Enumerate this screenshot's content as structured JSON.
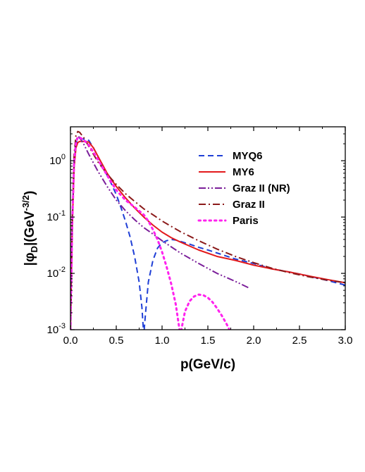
{
  "chart_data": {
    "type": "line",
    "xlabel": "p(GeV/c)",
    "ylabel": {
      "prefix": "|φ",
      "subscript": "D",
      "mid": "|(GeV",
      "superscript": "-3/2",
      "suffix": ")"
    },
    "xlim": [
      0,
      3.0
    ],
    "ylim": [
      0.001,
      4.0
    ],
    "yscale": "log",
    "grid": false,
    "legend_position": "top-right",
    "x_ticks": [
      {
        "value": 0.0,
        "label": "0.0"
      },
      {
        "value": 0.5,
        "label": "0.5"
      },
      {
        "value": 1.0,
        "label": "1.0"
      },
      {
        "value": 1.5,
        "label": "1.5"
      },
      {
        "value": 2.0,
        "label": "2.0"
      },
      {
        "value": 2.5,
        "label": "2.5"
      },
      {
        "value": 3.0,
        "label": "3.0"
      }
    ],
    "y_ticks": [
      {
        "value": 0.001,
        "base": "10",
        "exp": "-3"
      },
      {
        "value": 0.01,
        "base": "10",
        "exp": "-2"
      },
      {
        "value": 0.1,
        "base": "10",
        "exp": "-1"
      },
      {
        "value": 1,
        "base": "10",
        "exp": "0"
      }
    ],
    "series": [
      {
        "name": "MYQ6",
        "color": "#1f3fd6",
        "style": "dash",
        "x": [
          0.0,
          0.02,
          0.04,
          0.06,
          0.08,
          0.1,
          0.15,
          0.2,
          0.25,
          0.3,
          0.35,
          0.4,
          0.45,
          0.5,
          0.55,
          0.6,
          0.65,
          0.7,
          0.75,
          0.78,
          0.8,
          0.82,
          0.85,
          0.9,
          0.95,
          1.0,
          1.05,
          1.1,
          1.15,
          1.2,
          1.3,
          1.4,
          1.5,
          1.6,
          1.8,
          2.0,
          2.2,
          2.4,
          2.6,
          2.8,
          3.0
        ],
        "y": [
          0.001,
          0.08,
          0.9,
          2.0,
          2.4,
          2.5,
          2.4,
          2.3,
          1.7,
          1.2,
          0.8,
          0.55,
          0.38,
          0.25,
          0.15,
          0.085,
          0.045,
          0.02,
          0.007,
          0.0025,
          0.0008,
          0.002,
          0.007,
          0.017,
          0.028,
          0.035,
          0.038,
          0.04,
          0.039,
          0.037,
          0.033,
          0.029,
          0.026,
          0.023,
          0.018,
          0.015,
          0.012,
          0.0105,
          0.009,
          0.0075,
          0.0062
        ]
      },
      {
        "name": "MY6",
        "color": "#e31a1c",
        "style": "solid",
        "x": [
          0.0,
          0.02,
          0.04,
          0.06,
          0.08,
          0.1,
          0.15,
          0.2,
          0.25,
          0.3,
          0.35,
          0.4,
          0.5,
          0.6,
          0.7,
          0.8,
          0.9,
          1.0,
          1.1,
          1.2,
          1.4,
          1.6,
          1.8,
          2.0,
          2.2,
          2.4,
          2.6,
          2.8,
          3.0
        ],
        "y": [
          0.001,
          0.07,
          0.75,
          1.7,
          2.1,
          2.2,
          2.2,
          2.15,
          1.7,
          1.2,
          0.85,
          0.6,
          0.35,
          0.22,
          0.145,
          0.1,
          0.072,
          0.054,
          0.043,
          0.036,
          0.026,
          0.02,
          0.017,
          0.014,
          0.012,
          0.0105,
          0.009,
          0.0078,
          0.0068
        ]
      },
      {
        "name": "Graz II (NR)",
        "color": "#7b1f9a",
        "style": "dashdotdot",
        "x": [
          0.0,
          0.02,
          0.04,
          0.06,
          0.08,
          0.1,
          0.15,
          0.2,
          0.3,
          0.4,
          0.5,
          0.6,
          0.7,
          0.8,
          0.9,
          1.0,
          1.2,
          1.4,
          1.6,
          1.8,
          1.95
        ],
        "y": [
          0.001,
          0.09,
          1.1,
          2.3,
          2.7,
          2.6,
          1.9,
          1.3,
          0.65,
          0.35,
          0.2,
          0.13,
          0.09,
          0.065,
          0.05,
          0.038,
          0.023,
          0.015,
          0.01,
          0.0072,
          0.0055
        ]
      },
      {
        "name": "Graz II",
        "color": "#8b1a1a",
        "style": "dashdot",
        "x": [
          0.0,
          0.02,
          0.04,
          0.06,
          0.08,
          0.1,
          0.15,
          0.2,
          0.3,
          0.4,
          0.5,
          0.6,
          0.7,
          0.8,
          0.9,
          1.0,
          1.2,
          1.4,
          1.6,
          1.8,
          2.0,
          2.2,
          2.4,
          2.6,
          2.8,
          3.0
        ],
        "y": [
          0.001,
          0.1,
          1.3,
          2.8,
          3.3,
          3.2,
          2.5,
          1.8,
          0.95,
          0.58,
          0.38,
          0.26,
          0.19,
          0.14,
          0.11,
          0.085,
          0.055,
          0.038,
          0.027,
          0.02,
          0.0155,
          0.0123,
          0.0102,
          0.0087,
          0.0076,
          0.0068
        ]
      },
      {
        "name": "Paris",
        "color": "#ff22ee",
        "style": "dot",
        "x": [
          0.0,
          0.02,
          0.04,
          0.06,
          0.08,
          0.1,
          0.15,
          0.2,
          0.3,
          0.4,
          0.5,
          0.6,
          0.7,
          0.8,
          0.85,
          0.9,
          0.95,
          1.0,
          1.05,
          1.1,
          1.15,
          1.18,
          1.2,
          1.22,
          1.25,
          1.3,
          1.35,
          1.4,
          1.45,
          1.5,
          1.55,
          1.6,
          1.65,
          1.7,
          1.75,
          1.78
        ],
        "y": [
          0.001,
          0.08,
          0.95,
          2.1,
          2.6,
          2.6,
          2.3,
          1.9,
          1.05,
          0.55,
          0.3,
          0.2,
          0.15,
          0.11,
          0.085,
          0.06,
          0.04,
          0.024,
          0.013,
          0.0065,
          0.0028,
          0.0013,
          0.0008,
          0.0012,
          0.0021,
          0.0032,
          0.0039,
          0.0042,
          0.0041,
          0.0037,
          0.0031,
          0.0024,
          0.0018,
          0.0013,
          0.0009,
          0.0007
        ]
      }
    ]
  }
}
